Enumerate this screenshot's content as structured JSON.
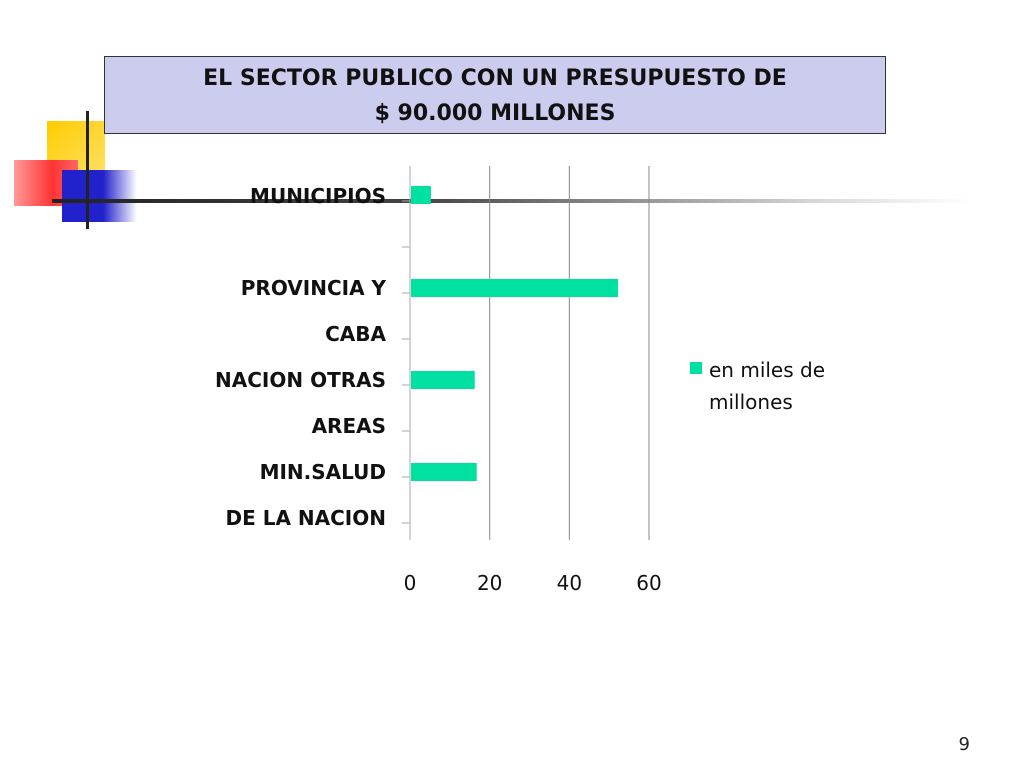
{
  "slide": {
    "title_line1": "EL SECTOR PUBLICO CON UN PRESUPUESTO DE",
    "title_line2": "$  90.000 MILLONES",
    "number": "9"
  },
  "colors": {
    "bar": "#00e0a0",
    "title_bg": "#ccccee",
    "grid": "#888888",
    "deco_yellow": "#ffcc00",
    "deco_red": "#ff4444",
    "deco_blue": "#2222cc"
  },
  "chart_data": {
    "type": "bar",
    "orientation": "horizontal",
    "category_label_lines": [
      "MUNICIPIOS",
      "PROVINCIA Y",
      "CABA",
      "NACION OTRAS",
      "AREAS",
      "MIN.SALUD",
      "DE LA NACION"
    ],
    "categories": [
      "MUNICIPIOS",
      "PROVINCIA Y CABA",
      "NACION OTRAS AREAS",
      "MIN.SALUD DE LA NACION"
    ],
    "series": [
      {
        "name": "en miles de millones",
        "values": [
          5,
          52,
          16,
          16.5
        ]
      }
    ],
    "legend_lines": [
      "en miles de",
      "millones"
    ],
    "legend_position": "right",
    "xlim": [
      0,
      60
    ],
    "xticks": [
      "0",
      "20",
      "40",
      "60"
    ],
    "grid": true
  }
}
